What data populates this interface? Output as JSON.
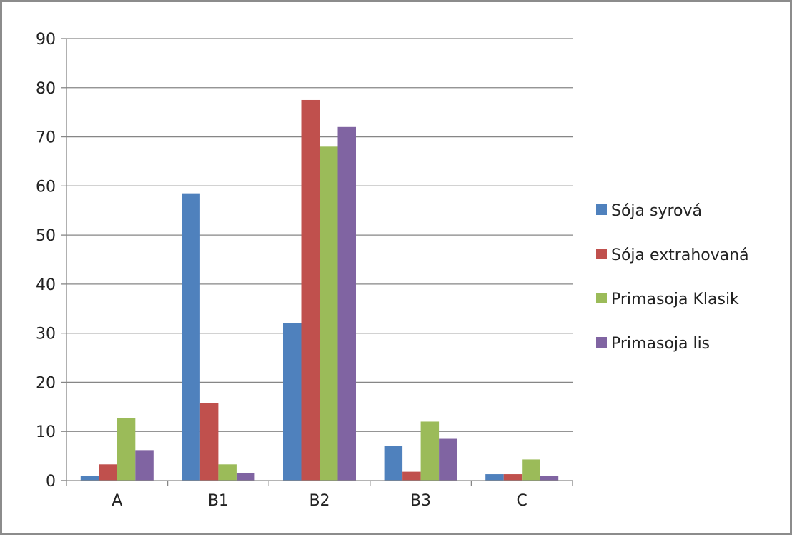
{
  "chart_data": {
    "type": "bar",
    "categories": [
      "A",
      "B1",
      "B2",
      "B3",
      "C"
    ],
    "series": [
      {
        "name": "Sója syrová",
        "color": "#4f81bd",
        "values": [
          1.0,
          58.5,
          32.0,
          7.0,
          1.3
        ]
      },
      {
        "name": "Sója extrahovaná",
        "color": "#c0504d",
        "values": [
          3.3,
          15.8,
          77.5,
          1.8,
          1.3
        ]
      },
      {
        "name": "Primasoja Klasik",
        "color": "#9bbb59",
        "values": [
          12.7,
          3.3,
          68.0,
          12.0,
          4.3
        ]
      },
      {
        "name": "Primasoja lis",
        "color": "#8064a2",
        "values": [
          6.2,
          1.6,
          72.0,
          8.5,
          1.0
        ]
      }
    ],
    "ylim": [
      0,
      90
    ],
    "yticks": [
      "0",
      "10",
      "20",
      "30",
      "40",
      "50",
      "60",
      "70",
      "80",
      "90"
    ],
    "grid": true,
    "legend_position": "right",
    "title": "",
    "xlabel": "",
    "ylabel": ""
  }
}
